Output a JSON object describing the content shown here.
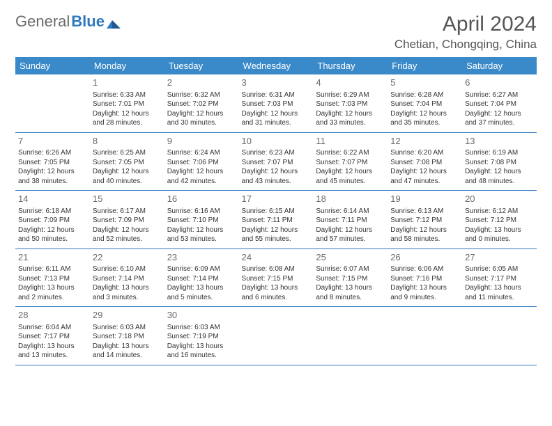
{
  "brand": {
    "part1": "General",
    "part2": "Blue"
  },
  "title": "April 2024",
  "location": "Chetian, Chongqing, China",
  "colors": {
    "header_bg": "#3a8ac9",
    "header_text": "#ffffff",
    "rule": "#2e78bd",
    "body_text": "#333333",
    "daynum": "#6a6a6a",
    "brand_grey": "#6a6a6a",
    "brand_blue": "#2e78bd"
  },
  "weekdays": [
    "Sunday",
    "Monday",
    "Tuesday",
    "Wednesday",
    "Thursday",
    "Friday",
    "Saturday"
  ],
  "weeks": [
    [
      null,
      {
        "n": "1",
        "sr": "6:33 AM",
        "ss": "7:01 PM",
        "d1": "12 hours",
        "d2": "and 28 minutes."
      },
      {
        "n": "2",
        "sr": "6:32 AM",
        "ss": "7:02 PM",
        "d1": "12 hours",
        "d2": "and 30 minutes."
      },
      {
        "n": "3",
        "sr": "6:31 AM",
        "ss": "7:03 PM",
        "d1": "12 hours",
        "d2": "and 31 minutes."
      },
      {
        "n": "4",
        "sr": "6:29 AM",
        "ss": "7:03 PM",
        "d1": "12 hours",
        "d2": "and 33 minutes."
      },
      {
        "n": "5",
        "sr": "6:28 AM",
        "ss": "7:04 PM",
        "d1": "12 hours",
        "d2": "and 35 minutes."
      },
      {
        "n": "6",
        "sr": "6:27 AM",
        "ss": "7:04 PM",
        "d1": "12 hours",
        "d2": "and 37 minutes."
      }
    ],
    [
      {
        "n": "7",
        "sr": "6:26 AM",
        "ss": "7:05 PM",
        "d1": "12 hours",
        "d2": "and 38 minutes."
      },
      {
        "n": "8",
        "sr": "6:25 AM",
        "ss": "7:05 PM",
        "d1": "12 hours",
        "d2": "and 40 minutes."
      },
      {
        "n": "9",
        "sr": "6:24 AM",
        "ss": "7:06 PM",
        "d1": "12 hours",
        "d2": "and 42 minutes."
      },
      {
        "n": "10",
        "sr": "6:23 AM",
        "ss": "7:07 PM",
        "d1": "12 hours",
        "d2": "and 43 minutes."
      },
      {
        "n": "11",
        "sr": "6:22 AM",
        "ss": "7:07 PM",
        "d1": "12 hours",
        "d2": "and 45 minutes."
      },
      {
        "n": "12",
        "sr": "6:20 AM",
        "ss": "7:08 PM",
        "d1": "12 hours",
        "d2": "and 47 minutes."
      },
      {
        "n": "13",
        "sr": "6:19 AM",
        "ss": "7:08 PM",
        "d1": "12 hours",
        "d2": "and 48 minutes."
      }
    ],
    [
      {
        "n": "14",
        "sr": "6:18 AM",
        "ss": "7:09 PM",
        "d1": "12 hours",
        "d2": "and 50 minutes."
      },
      {
        "n": "15",
        "sr": "6:17 AM",
        "ss": "7:09 PM",
        "d1": "12 hours",
        "d2": "and 52 minutes."
      },
      {
        "n": "16",
        "sr": "6:16 AM",
        "ss": "7:10 PM",
        "d1": "12 hours",
        "d2": "and 53 minutes."
      },
      {
        "n": "17",
        "sr": "6:15 AM",
        "ss": "7:11 PM",
        "d1": "12 hours",
        "d2": "and 55 minutes."
      },
      {
        "n": "18",
        "sr": "6:14 AM",
        "ss": "7:11 PM",
        "d1": "12 hours",
        "d2": "and 57 minutes."
      },
      {
        "n": "19",
        "sr": "6:13 AM",
        "ss": "7:12 PM",
        "d1": "12 hours",
        "d2": "and 58 minutes."
      },
      {
        "n": "20",
        "sr": "6:12 AM",
        "ss": "7:12 PM",
        "d1": "13 hours",
        "d2": "and 0 minutes."
      }
    ],
    [
      {
        "n": "21",
        "sr": "6:11 AM",
        "ss": "7:13 PM",
        "d1": "13 hours",
        "d2": "and 2 minutes."
      },
      {
        "n": "22",
        "sr": "6:10 AM",
        "ss": "7:14 PM",
        "d1": "13 hours",
        "d2": "and 3 minutes."
      },
      {
        "n": "23",
        "sr": "6:09 AM",
        "ss": "7:14 PM",
        "d1": "13 hours",
        "d2": "and 5 minutes."
      },
      {
        "n": "24",
        "sr": "6:08 AM",
        "ss": "7:15 PM",
        "d1": "13 hours",
        "d2": "and 6 minutes."
      },
      {
        "n": "25",
        "sr": "6:07 AM",
        "ss": "7:15 PM",
        "d1": "13 hours",
        "d2": "and 8 minutes."
      },
      {
        "n": "26",
        "sr": "6:06 AM",
        "ss": "7:16 PM",
        "d1": "13 hours",
        "d2": "and 9 minutes."
      },
      {
        "n": "27",
        "sr": "6:05 AM",
        "ss": "7:17 PM",
        "d1": "13 hours",
        "d2": "and 11 minutes."
      }
    ],
    [
      {
        "n": "28",
        "sr": "6:04 AM",
        "ss": "7:17 PM",
        "d1": "13 hours",
        "d2": "and 13 minutes."
      },
      {
        "n": "29",
        "sr": "6:03 AM",
        "ss": "7:18 PM",
        "d1": "13 hours",
        "d2": "and 14 minutes."
      },
      {
        "n": "30",
        "sr": "6:03 AM",
        "ss": "7:19 PM",
        "d1": "13 hours",
        "d2": "and 16 minutes."
      },
      null,
      null,
      null,
      null
    ]
  ],
  "labels": {
    "sunrise": "Sunrise:",
    "sunset": "Sunset:",
    "daylight": "Daylight:"
  }
}
